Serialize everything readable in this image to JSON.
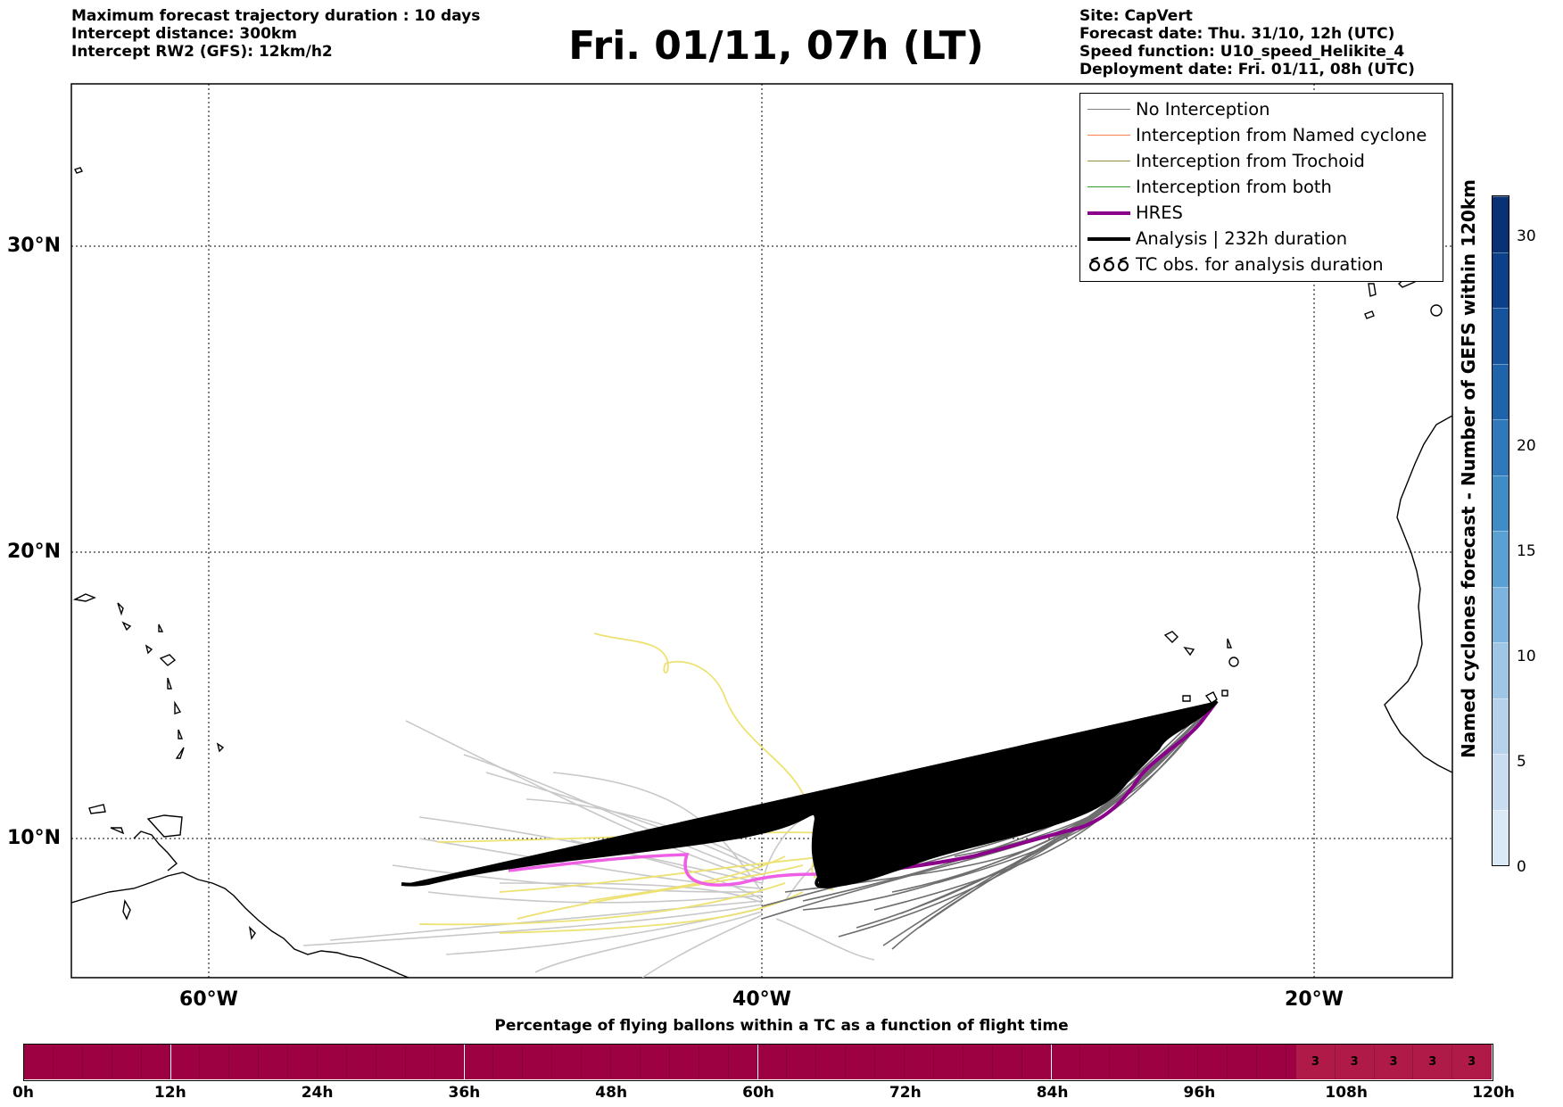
{
  "header": {
    "left": [
      "Maximum forecast trajectory duration : 10 days",
      "Intercept distance: 300km",
      "Intercept RW2 (GFS):  12km/h2"
    ],
    "title": "Fri. 01/11, 07h (LT)",
    "right": [
      "Site: CapVert",
      "Forecast date: Thu. 31/10, 12h (UTC)",
      "Speed function: U10_speed_Helikite_4",
      "Deployment date: Fri. 01/11, 08h (UTC)"
    ]
  },
  "map": {
    "lat_labels": [
      "30°N",
      "20°N",
      "10°N"
    ],
    "lon_labels": [
      "60°W",
      "40°W",
      "20°W"
    ]
  },
  "legend": {
    "items": [
      {
        "label": "No Interception",
        "color": "#808080",
        "style": "line-thin",
        "icon": ""
      },
      {
        "label": "Interception from Named cyclone",
        "color": "#ff7f50",
        "style": "line-thin",
        "icon": ""
      },
      {
        "label": "Interception from Trochoid",
        "color": "#9b8b3c",
        "style": "line-thin",
        "icon": ""
      },
      {
        "label": "Interception from both",
        "color": "#2ca02c",
        "style": "line-thin",
        "icon": ""
      },
      {
        "label": "HRES",
        "color": "#8b008b",
        "style": "line-thick",
        "icon": ""
      },
      {
        "label": "Analysis | 232h duration",
        "color": "#000000",
        "style": "line-thick",
        "icon": ""
      },
      {
        "label": "TC obs. for analysis duration",
        "color": "#000000",
        "style": "symbol",
        "icon": "cyclone-symbols-icon"
      }
    ]
  },
  "colorbar": {
    "label": "Named cyclones forecast - Number of GEFS within 120km",
    "ticks": [
      "0",
      "5",
      "10",
      "15",
      "20",
      "30"
    ],
    "colors": [
      "#dbe8f6",
      "#cadcf0",
      "#b6d2ea",
      "#9fc6e4",
      "#7db4dd",
      "#5aa0d2",
      "#3f8cc6",
      "#2f79ba",
      "#1f64aa",
      "#15539c",
      "#0c4189",
      "#083273"
    ]
  },
  "time_bar": {
    "title": "Percentage of flying ballons within a TC as a function of flight time",
    "tick_labels": [
      "0h",
      "12h",
      "24h",
      "36h",
      "48h",
      "60h",
      "72h",
      "84h",
      "96h",
      "108h",
      "120h"
    ],
    "base_color": "#9e0142",
    "highlight_color": "#b01a48",
    "highlight_values": [
      "3",
      "3",
      "3",
      "3",
      "3"
    ]
  }
}
